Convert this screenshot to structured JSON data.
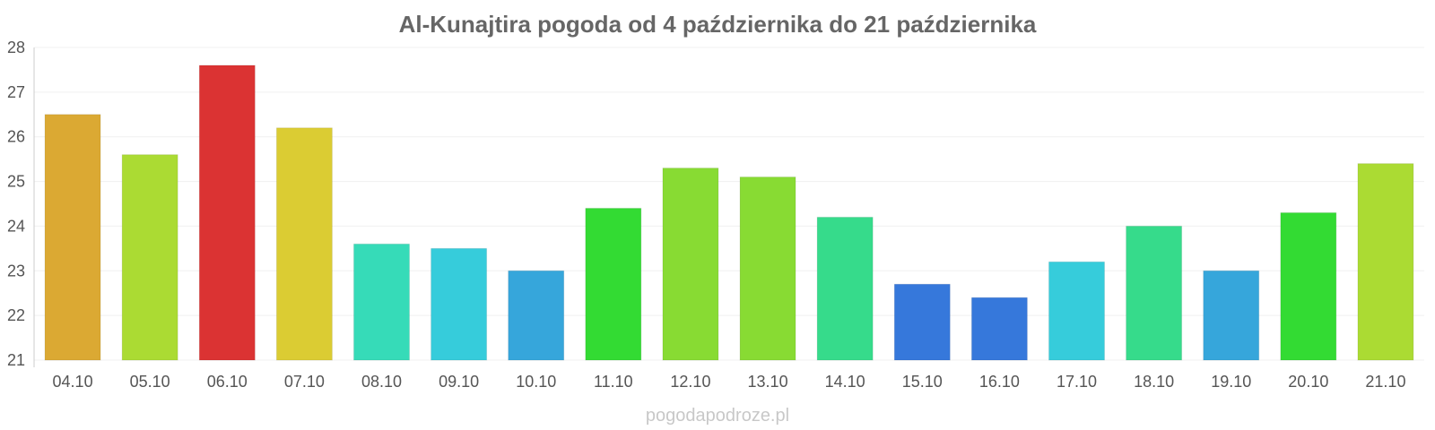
{
  "chart_data": {
    "type": "bar",
    "title": "Al-Kunajtira pogoda od 4 października do 21 października",
    "xlabel": "",
    "ylabel": "",
    "ylim": [
      21,
      28
    ],
    "yticks": [
      21,
      22,
      23,
      24,
      25,
      26,
      27,
      28
    ],
    "grid": true,
    "legend": "none",
    "categories": [
      "04.10",
      "05.10",
      "06.10",
      "07.10",
      "08.10",
      "09.10",
      "10.10",
      "11.10",
      "12.10",
      "13.10",
      "14.10",
      "15.10",
      "16.10",
      "17.10",
      "18.10",
      "19.10",
      "20.10",
      "21.10"
    ],
    "values": [
      26.5,
      25.6,
      27.6,
      26.2,
      23.6,
      23.5,
      23.0,
      24.4,
      25.3,
      25.1,
      24.2,
      22.7,
      22.4,
      23.2,
      24.0,
      23.0,
      24.3,
      25.4
    ],
    "colors": [
      "#dba933",
      "#abdb33",
      "#db3333",
      "#dbcc33",
      "#36dbb8",
      "#36ccdb",
      "#36a6db",
      "#33db33",
      "#88db33",
      "#88db33",
      "#36db8b",
      "#3678db",
      "#3678db",
      "#36ccdb",
      "#36db8b",
      "#36a6db",
      "#33db33",
      "#abdb33"
    ]
  },
  "footer": "pogodapodroze.pl"
}
